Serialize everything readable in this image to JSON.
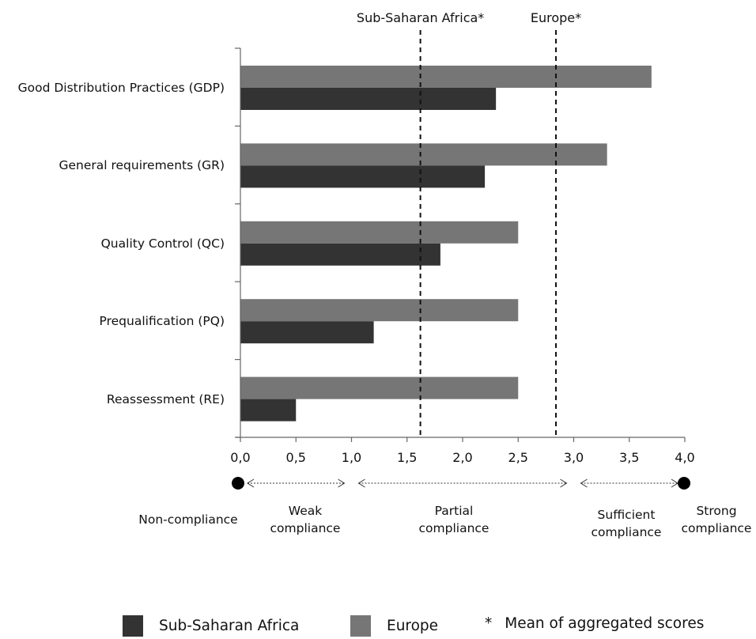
{
  "chart_data": {
    "type": "bar",
    "orientation": "horizontal",
    "categories": [
      "Good Distribution Practices (GDP)",
      "General requirements (GR)",
      "Quality Control (QC)",
      "Prequalification (PQ)",
      "Reassessment (RE)"
    ],
    "series": [
      {
        "name": "Europe",
        "values": [
          3.7,
          3.3,
          2.5,
          2.5,
          2.5
        ],
        "color": "#767676"
      },
      {
        "name": "Sub-Saharan Africa",
        "values": [
          2.3,
          2.2,
          1.8,
          1.2,
          0.5
        ],
        "color": "#333333"
      }
    ],
    "xlim": [
      0,
      4
    ],
    "xticks": [
      "0,0",
      "0,5",
      "1,0",
      "1,5",
      "2,0",
      "2,5",
      "3,0",
      "3,5",
      "4,0"
    ],
    "reference_lines": [
      {
        "label": "Sub-Saharan Africa*",
        "value": 1.62
      },
      {
        "label": "Europe*",
        "value": 2.84
      }
    ],
    "compliance_scale": [
      {
        "label_lines": [
          "Non-compliance"
        ]
      },
      {
        "label_lines": [
          "Weak",
          "compliance"
        ]
      },
      {
        "label_lines": [
          "Partial",
          "compliance"
        ]
      },
      {
        "label_lines": [
          "Sufficient",
          "compliance"
        ]
      },
      {
        "label_lines": [
          "Strong",
          "compliance"
        ]
      }
    ],
    "legend": [
      {
        "label": "Sub-Saharan Africa",
        "color": "#333333"
      },
      {
        "label": "Europe",
        "color": "#767676"
      }
    ],
    "footnote": {
      "symbol": "*",
      "text": "Mean of aggregated scores"
    },
    "grid": false,
    "legend_position": "bottom"
  }
}
